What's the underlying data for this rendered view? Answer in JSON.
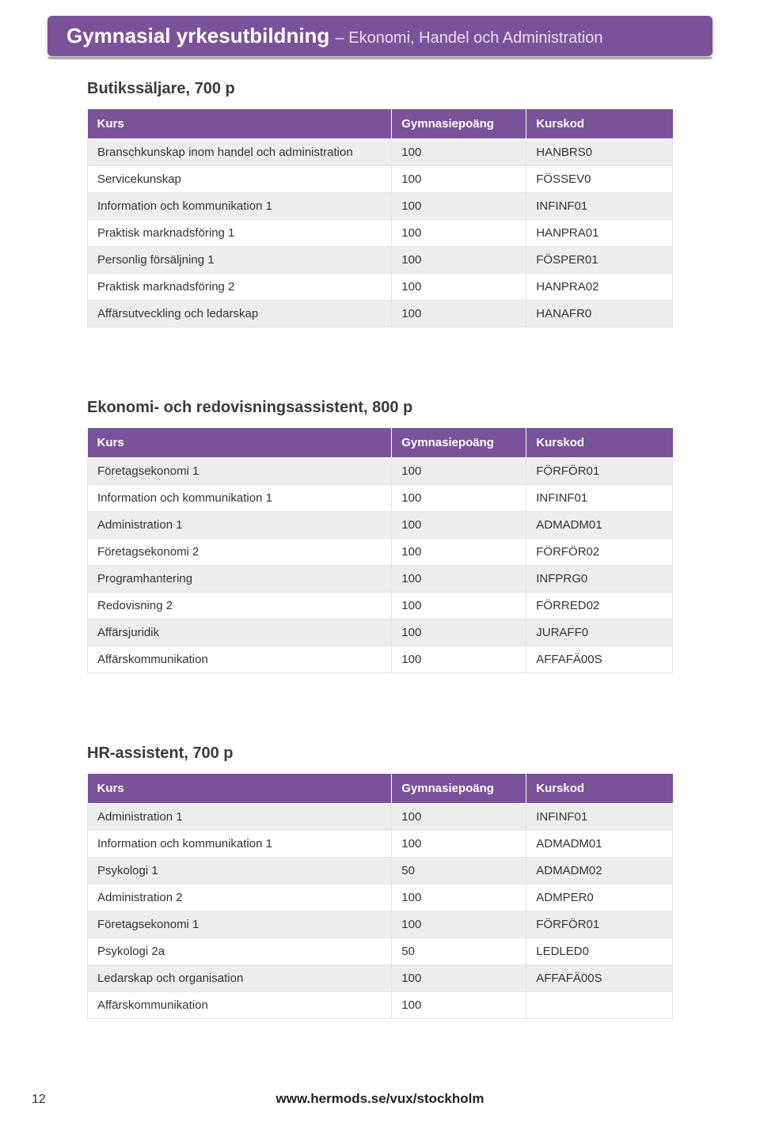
{
  "banner": {
    "title": "Gymnasial yrkesutbildning",
    "subtitle": " – Ekonomi, Handel och Administration"
  },
  "tables_common": {
    "header_kurs": "Kurs",
    "header_poang": "Gymnasiepoäng",
    "header_kod": "Kurskod"
  },
  "section1": {
    "title": "Butikssäljare, 700 p",
    "rows": [
      {
        "kurs": "Branschkunskap inom handel och administration",
        "poang": "100",
        "kod": "HANBRS0"
      },
      {
        "kurs": "Servicekunskap",
        "poang": "100",
        "kod": "FÖSSEV0"
      },
      {
        "kurs": "Information och kommunikation 1",
        "poang": "100",
        "kod": "INFINF01"
      },
      {
        "kurs": "Praktisk marknadsföring 1",
        "poang": "100",
        "kod": "HANPRA01"
      },
      {
        "kurs": "Personlig försäljning 1",
        "poang": "100",
        "kod": "FÖSPER01"
      },
      {
        "kurs": "Praktisk marknadsföring 2",
        "poang": "100",
        "kod": "HANPRA02"
      },
      {
        "kurs": "Affärsutveckling och ledarskap",
        "poang": "100",
        "kod": "HANAFR0"
      }
    ]
  },
  "section2": {
    "title": "Ekonomi- och redovisningsassistent, 800 p",
    "rows": [
      {
        "kurs": "Företagsekonomi 1",
        "poang": "100",
        "kod": "FÖRFÖR01"
      },
      {
        "kurs": "Information och kommunikation 1",
        "poang": "100",
        "kod": "INFINF01"
      },
      {
        "kurs": "Administration 1",
        "poang": "100",
        "kod": "ADMADM01"
      },
      {
        "kurs": "Företagsekonomi 2",
        "poang": "100",
        "kod": "FÖRFÖR02"
      },
      {
        "kurs": "Programhantering",
        "poang": "100",
        "kod": "INFPRG0"
      },
      {
        "kurs": "Redovisning 2",
        "poang": "100",
        "kod": "FÖRRED02"
      },
      {
        "kurs": "Affärsjuridik",
        "poang": "100",
        "kod": "JURAFF0"
      },
      {
        "kurs": "Affärskommunikation",
        "poang": "100",
        "kod": "AFFAFÄ00S"
      }
    ]
  },
  "section3": {
    "title": "HR-assistent, 700 p",
    "rows": [
      {
        "kurs": "Administration 1",
        "poang": "100",
        "kod": "INFINF01"
      },
      {
        "kurs": "Information och kommunikation 1",
        "poang": "100",
        "kod": "ADMADM01"
      },
      {
        "kurs": "Psykologi 1",
        "poang": "50",
        "kod": "ADMADM02"
      },
      {
        "kurs": "Administration 2",
        "poang": "100",
        "kod": "ADMPER0"
      },
      {
        "kurs": "Företagsekonomi 1",
        "poang": "100",
        "kod": "FÖRFÖR01"
      },
      {
        "kurs": "Psykologi 2a",
        "poang": "50",
        "kod": "LEDLED0"
      },
      {
        "kurs": "Ledarskap och organisation",
        "poang": "100",
        "kod": "AFFAFÄ00S"
      },
      {
        "kurs": "Affärskommunikation",
        "poang": "100",
        "kod": ""
      }
    ]
  },
  "footer": {
    "page_number": "12",
    "url": "www.hermods.se/vux/stockholm"
  },
  "colors": {
    "banner_bg": "#7a529a",
    "banner_text": "#ffffff",
    "header_bg": "#7a529a",
    "row_alt_bg": "#efedef",
    "border": "#e6e3e8"
  }
}
